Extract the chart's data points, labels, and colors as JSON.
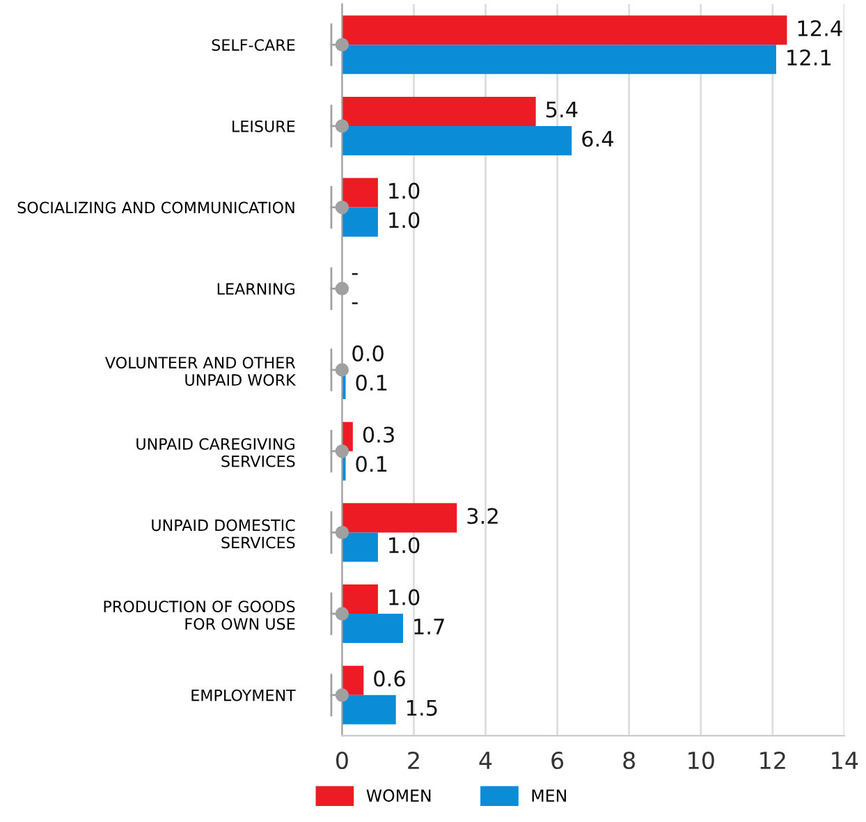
{
  "chart_data": {
    "type": "bar",
    "orientation": "horizontal",
    "categories": [
      "SELF-CARE",
      "LEISURE",
      "SOCIALIZING AND COMMUNICATION",
      "LEARNING",
      "VOLUNTEER AND OTHER\nUNPAID WORK",
      "UNPAID CAREGIVING\nSERVICES",
      "UNPAID DOMESTIC\nSERVICES",
      "PRODUCTION OF GOODS\nFOR OWN USE",
      "EMPLOYMENT"
    ],
    "series": [
      {
        "name": "WOMEN",
        "color": "#ed1c24",
        "values": [
          12.4,
          5.4,
          1.0,
          null,
          0.0,
          0.3,
          3.2,
          1.0,
          0.6
        ],
        "value_labels": [
          "12.4",
          "5.4",
          "1.0",
          "-",
          "0.0",
          "0.3",
          "3.2",
          "1.0",
          "0.6"
        ]
      },
      {
        "name": "MEN",
        "color": "#0a8dd6",
        "values": [
          12.1,
          6.4,
          1.0,
          null,
          0.1,
          0.1,
          1.0,
          1.7,
          1.5
        ],
        "value_labels": [
          "12.1",
          "6.4",
          "1.0",
          "-",
          "0.1",
          "0.1",
          "1.0",
          "1.7",
          "1.5"
        ]
      }
    ],
    "xlim": [
      0,
      14
    ],
    "xticks": [
      0,
      2,
      4,
      6,
      8,
      10,
      12,
      14
    ],
    "grid": "x",
    "legend": "bottom left"
  }
}
